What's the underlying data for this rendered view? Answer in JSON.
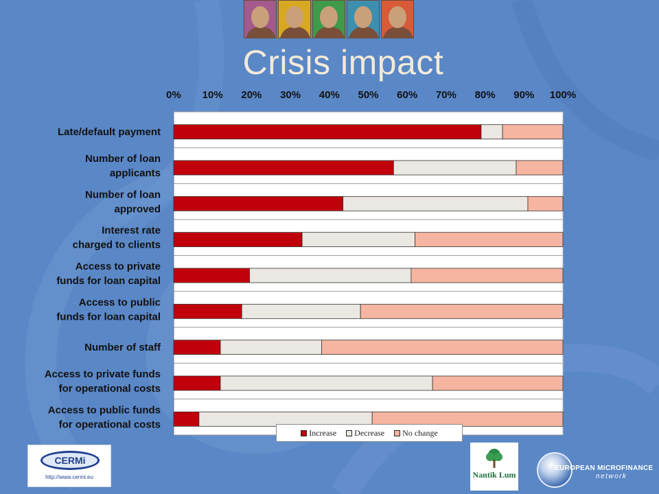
{
  "slide": {
    "title": "Crisis impact"
  },
  "colors": {
    "background": "#5a87c6",
    "increase": "#c0000b",
    "decrease": "#ebe7e2",
    "no_change": "#f5b5a0",
    "plot_bg": "#ffffff"
  },
  "photos": [
    {
      "name": "woman-portrait-photo",
      "bg": "#a45a8c"
    },
    {
      "name": "man-portrait-photo",
      "bg": "#d8a822"
    },
    {
      "name": "smiling-woman-photo",
      "bg": "#3f9a4a"
    },
    {
      "name": "man-working-photo",
      "bg": "#3d8fb0"
    },
    {
      "name": "laughing-woman-photo",
      "bg": "#d85a36"
    }
  ],
  "chart_data": {
    "type": "bar",
    "orientation": "horizontal",
    "stacked": "percent",
    "categories": [
      [
        "Late/default payment"
      ],
      [
        "Number of loan",
        "applicants"
      ],
      [
        "Number of loan",
        "approved"
      ],
      [
        "Interest rate",
        "charged to clients"
      ],
      [
        "Access to private",
        "funds for loan capital"
      ],
      [
        "Access to public",
        "funds for loan capital"
      ],
      [
        "Number of staff"
      ],
      [
        "Access to private funds",
        "for operational costs"
      ],
      [
        "Access to public funds",
        "for operational costs"
      ]
    ],
    "series": [
      {
        "name": "Increase",
        "values": [
          79,
          56.5,
          43.5,
          33,
          19.5,
          17.5,
          12,
          12,
          6.5
        ]
      },
      {
        "name": "Decrease",
        "values": [
          5.5,
          31.5,
          47.5,
          29,
          41.5,
          30.5,
          26,
          54.5,
          44.5
        ]
      },
      {
        "name": "No change",
        "values": [
          15.5,
          12,
          9,
          38,
          39,
          52,
          62,
          33.5,
          49
        ]
      }
    ],
    "x_ticks": [
      "0%",
      "10%",
      "20%",
      "30%",
      "40%",
      "50%",
      "60%",
      "70%",
      "80%",
      "90%",
      "100%"
    ],
    "xlim": [
      0,
      100
    ],
    "x_axis_position": "top",
    "legend": [
      "Increase",
      "Decrease",
      "No change"
    ],
    "legend_position": "bottom",
    "grid": true
  },
  "logos": {
    "cermi": {
      "name": "CERMi",
      "url": "http://www.cermi.eu"
    },
    "nantik": {
      "name": "Nantik Lum"
    },
    "emn": {
      "line1": "EUROPEAN MICROFINANCE",
      "line2": "network"
    }
  }
}
